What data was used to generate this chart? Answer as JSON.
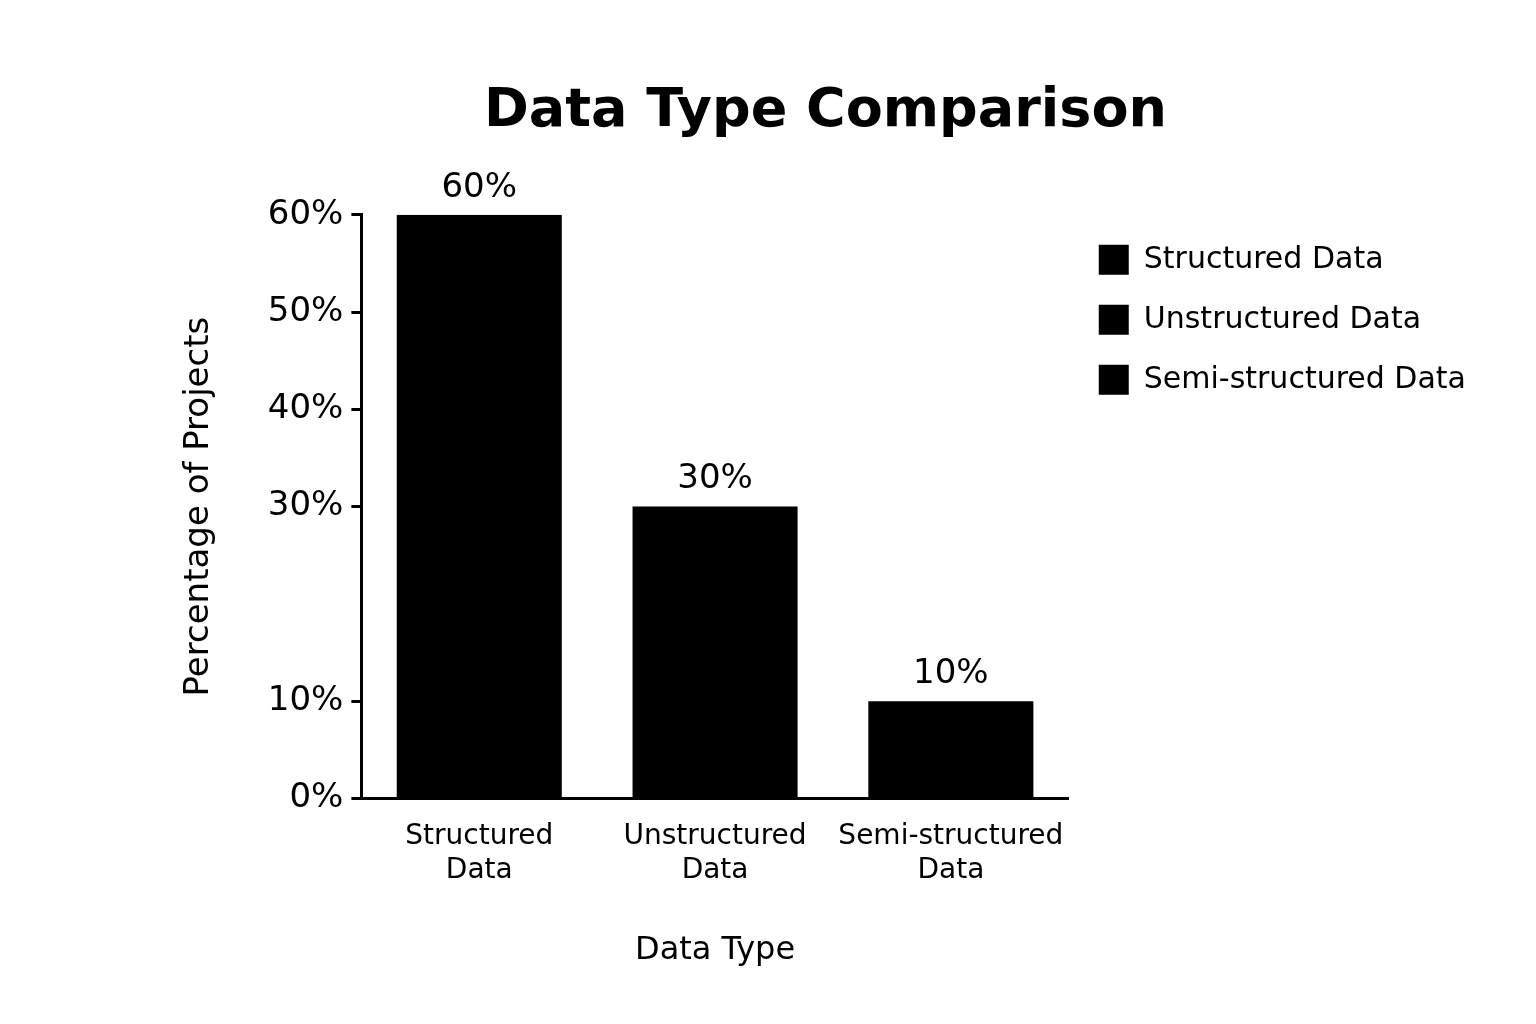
{
  "chart_data": {
    "type": "bar",
    "title": "Data Type Comparison",
    "xlabel": "Data Type",
    "ylabel": "Percentage of Projects",
    "categories": [
      "Structured Data",
      "Unstructured Data",
      "Semi-structured Data"
    ],
    "series": [
      {
        "name": "Structured Data",
        "color": "#000000",
        "values": [
          60,
          null,
          null
        ],
        "value_labels": [
          "60%",
          null,
          null
        ]
      },
      {
        "name": "Unstructured Data",
        "color": "#000000",
        "values": [
          null,
          30,
          null
        ],
        "value_labels": [
          null,
          "30%",
          null
        ]
      },
      {
        "name": "Semi-structured Data",
        "color": "#000000",
        "values": [
          null,
          null,
          10
        ],
        "value_labels": [
          null,
          null,
          "10%"
        ]
      }
    ],
    "ylim": [
      0,
      60
    ],
    "yticks": [
      {
        "value": 0,
        "label": "0%"
      },
      {
        "value": 10,
        "label": "10%"
      },
      {
        "value": 30,
        "label": "30%"
      },
      {
        "value": 40,
        "label": "40%"
      },
      {
        "value": 50,
        "label": "50%"
      },
      {
        "value": 60,
        "label": "60%"
      }
    ],
    "legend": "top right",
    "grid": false
  }
}
